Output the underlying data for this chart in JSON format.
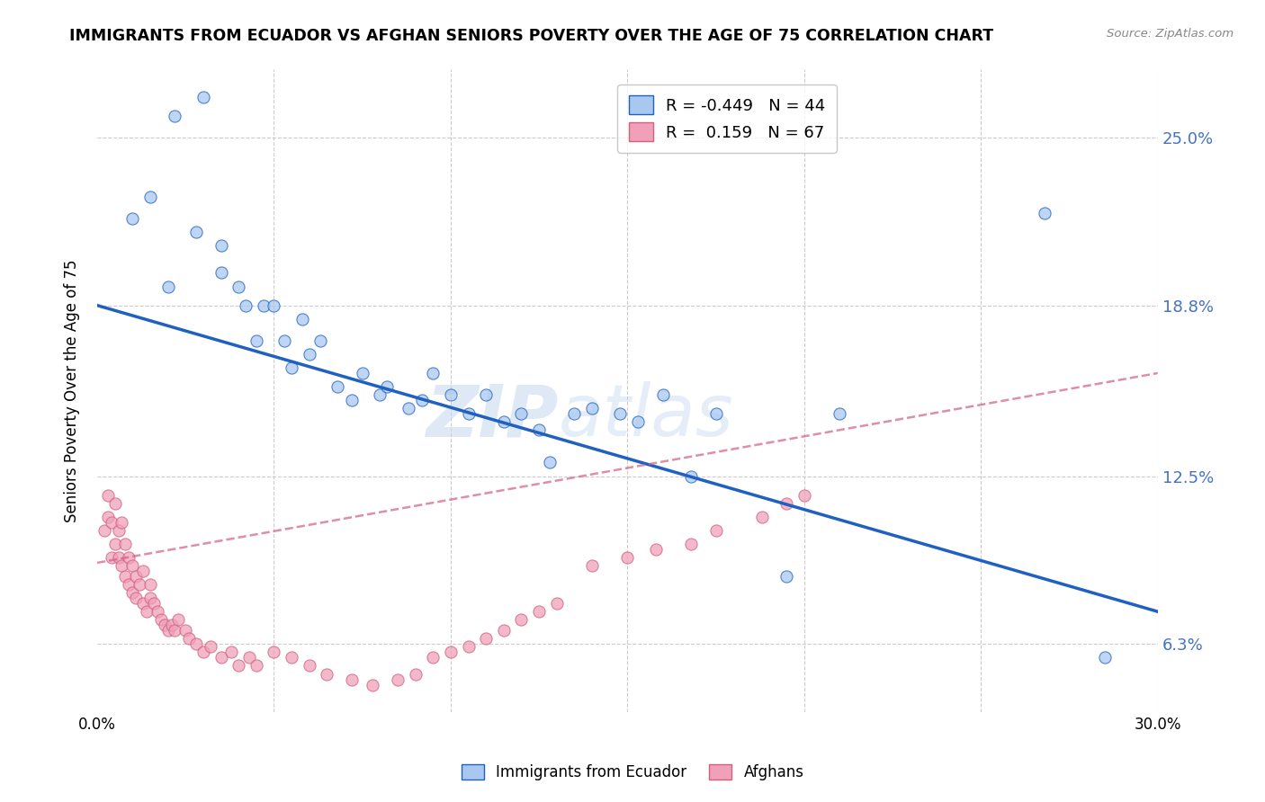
{
  "title": "IMMIGRANTS FROM ECUADOR VS AFGHAN SENIORS POVERTY OVER THE AGE OF 75 CORRELATION CHART",
  "source": "Source: ZipAtlas.com",
  "ylabel": "Seniors Poverty Over the Age of 75",
  "xlim": [
    0.0,
    0.3
  ],
  "ylim": [
    0.038,
    0.275
  ],
  "ytick_labels": [
    "6.3%",
    "12.5%",
    "18.8%",
    "25.0%"
  ],
  "ytick_values": [
    0.063,
    0.125,
    0.188,
    0.25
  ],
  "xtick_values": [
    0.0,
    0.05,
    0.1,
    0.15,
    0.2,
    0.25,
    0.3
  ],
  "legend_label1": "Immigrants from Ecuador",
  "legend_label2": "Afghans",
  "r1": "-0.449",
  "n1": "44",
  "r2": "0.159",
  "n2": "67",
  "color_ecuador": "#A8C8F0",
  "color_afghan": "#F0A0B8",
  "color_line_ecuador": "#2060C0",
  "color_line_afghan": "#D06080",
  "watermark_zip": "ZIP",
  "watermark_atlas": "atlas",
  "ecuador_x": [
    0.01,
    0.015,
    0.02,
    0.022,
    0.028,
    0.03,
    0.035,
    0.035,
    0.04,
    0.042,
    0.045,
    0.047,
    0.05,
    0.053,
    0.055,
    0.058,
    0.06,
    0.063,
    0.068,
    0.072,
    0.075,
    0.08,
    0.082,
    0.088,
    0.092,
    0.095,
    0.1,
    0.105,
    0.11,
    0.115,
    0.12,
    0.125,
    0.128,
    0.135,
    0.14,
    0.148,
    0.153,
    0.16,
    0.168,
    0.175,
    0.195,
    0.21,
    0.268,
    0.285
  ],
  "ecuador_y": [
    0.22,
    0.228,
    0.195,
    0.258,
    0.215,
    0.265,
    0.2,
    0.21,
    0.195,
    0.188,
    0.175,
    0.188,
    0.188,
    0.175,
    0.165,
    0.183,
    0.17,
    0.175,
    0.158,
    0.153,
    0.163,
    0.155,
    0.158,
    0.15,
    0.153,
    0.163,
    0.155,
    0.148,
    0.155,
    0.145,
    0.148,
    0.142,
    0.13,
    0.148,
    0.15,
    0.148,
    0.145,
    0.155,
    0.125,
    0.148,
    0.088,
    0.148,
    0.222,
    0.058
  ],
  "afghan_x": [
    0.002,
    0.003,
    0.003,
    0.004,
    0.004,
    0.005,
    0.005,
    0.006,
    0.006,
    0.007,
    0.007,
    0.008,
    0.008,
    0.009,
    0.009,
    0.01,
    0.01,
    0.011,
    0.011,
    0.012,
    0.013,
    0.013,
    0.014,
    0.015,
    0.015,
    0.016,
    0.017,
    0.018,
    0.019,
    0.02,
    0.021,
    0.022,
    0.023,
    0.025,
    0.026,
    0.028,
    0.03,
    0.032,
    0.035,
    0.038,
    0.04,
    0.043,
    0.045,
    0.05,
    0.055,
    0.06,
    0.065,
    0.072,
    0.078,
    0.085,
    0.09,
    0.095,
    0.1,
    0.105,
    0.11,
    0.115,
    0.12,
    0.125,
    0.13,
    0.14,
    0.15,
    0.158,
    0.168,
    0.175,
    0.188,
    0.195,
    0.2
  ],
  "afghan_y": [
    0.105,
    0.11,
    0.118,
    0.095,
    0.108,
    0.1,
    0.115,
    0.095,
    0.105,
    0.092,
    0.108,
    0.088,
    0.1,
    0.085,
    0.095,
    0.082,
    0.092,
    0.08,
    0.088,
    0.085,
    0.078,
    0.09,
    0.075,
    0.08,
    0.085,
    0.078,
    0.075,
    0.072,
    0.07,
    0.068,
    0.07,
    0.068,
    0.072,
    0.068,
    0.065,
    0.063,
    0.06,
    0.062,
    0.058,
    0.06,
    0.055,
    0.058,
    0.055,
    0.06,
    0.058,
    0.055,
    0.052,
    0.05,
    0.048,
    0.05,
    0.052,
    0.058,
    0.06,
    0.062,
    0.065,
    0.068,
    0.072,
    0.075,
    0.078,
    0.092,
    0.095,
    0.098,
    0.1,
    0.105,
    0.11,
    0.115,
    0.118
  ],
  "ecuador_line_x0": 0.0,
  "ecuador_line_y0": 0.188,
  "ecuador_line_x1": 0.3,
  "ecuador_line_y1": 0.075,
  "afghan_line_x0": 0.0,
  "afghan_line_y0": 0.093,
  "afghan_line_x1": 0.3,
  "afghan_line_y1": 0.163
}
